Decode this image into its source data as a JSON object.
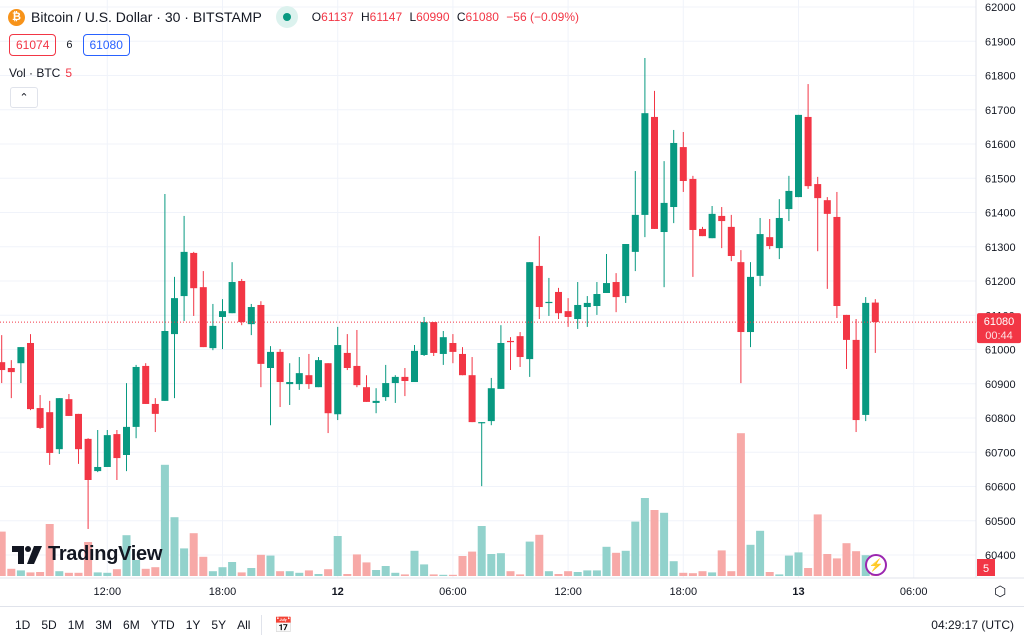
{
  "header": {
    "symbol_title": "Bitcoin / U.S. Dollar · 30 · BITSTAMP",
    "btc_icon": "₿",
    "ohlc": {
      "o_label": "O",
      "o": "61137",
      "h_label": "H",
      "h": "61147",
      "l_label": "L",
      "l": "60990",
      "c_label": "C",
      "c": "61080",
      "change": "−56 (−0.09%)"
    }
  },
  "quote": {
    "sell": "61074",
    "spread": "6",
    "buy": "61080"
  },
  "volume_legend": {
    "label": "Vol · BTC",
    "value": "5"
  },
  "collapse_icon": "⌃",
  "last_price": {
    "price": "61080",
    "countdown": "00:44"
  },
  "volume_axis_label": "5",
  "logo_text": "TradingView",
  "toolbar": {
    "ranges": [
      "1D",
      "5D",
      "1M",
      "3M",
      "6M",
      "YTD",
      "1Y",
      "5Y",
      "All"
    ],
    "clock": "04:29:17 (UTC)"
  },
  "colors": {
    "up": "#089981",
    "down": "#f23645",
    "up_vol": "#92d2cc",
    "down_vol": "#f7a9a7"
  },
  "chart_data": {
    "type": "candlestick",
    "title": "Bitcoin / U.S. Dollar · 30 · BITSTAMP",
    "interval": "30m",
    "ylim": [
      60400,
      62000
    ],
    "price_ticks": [
      62000,
      61900,
      61800,
      61700,
      61600,
      61500,
      61400,
      61300,
      61200,
      61100,
      61000,
      60900,
      60800,
      60700,
      60600,
      60500,
      60400
    ],
    "time_ticks": [
      {
        "index": 11,
        "label": "12:00",
        "bold": false
      },
      {
        "index": 23,
        "label": "18:00",
        "bold": false
      },
      {
        "index": 35,
        "label": "12",
        "bold": true
      },
      {
        "index": 47,
        "label": "06:00",
        "bold": false
      },
      {
        "index": 59,
        "label": "12:00",
        "bold": false
      },
      {
        "index": 71,
        "label": "18:00",
        "bold": false
      },
      {
        "index": 83,
        "label": "13",
        "bold": true
      },
      {
        "index": 95,
        "label": "06:00",
        "bold": false
      }
    ],
    "last_price": 61080,
    "ohlc": [
      [
        60963,
        61042,
        60902,
        60940
      ],
      [
        60946,
        60969,
        60858,
        60934
      ],
      [
        60960,
        61007,
        60902,
        61007
      ],
      [
        61019,
        61045,
        60823,
        60826
      ],
      [
        60829,
        60867,
        60768,
        60771
      ],
      [
        60817,
        60850,
        60663,
        60698
      ],
      [
        60709,
        60858,
        60695,
        60858
      ],
      [
        60855,
        60870,
        60806,
        60806
      ],
      [
        60812,
        60812,
        60666,
        60709
      ],
      [
        60739,
        60741,
        60476,
        60619
      ],
      [
        60645,
        60765,
        60642,
        60657
      ],
      [
        60657,
        60765,
        60657,
        60750
      ],
      [
        60753,
        60765,
        60619,
        60683
      ],
      [
        60692,
        60902,
        60645,
        60774
      ],
      [
        60774,
        60955,
        60741,
        60949
      ],
      [
        60952,
        60960,
        60841,
        60841
      ],
      [
        60841,
        60858,
        60759,
        60812
      ],
      [
        60850,
        61454,
        60850,
        61054
      ],
      [
        61045,
        61212,
        60858,
        61150
      ],
      [
        61156,
        61390,
        61083,
        61285
      ],
      [
        61282,
        61285,
        61098,
        61179
      ],
      [
        61182,
        61229,
        61007,
        61007
      ],
      [
        61004,
        61133,
        60998,
        61069
      ],
      [
        61095,
        61147,
        61001,
        61112
      ],
      [
        61106,
        61255,
        61106,
        61197
      ],
      [
        61200,
        61206,
        61071,
        61080
      ],
      [
        61074,
        61133,
        61042,
        61124
      ],
      [
        61130,
        61141,
        60890,
        60958
      ],
      [
        60946,
        61010,
        60779,
        60993
      ],
      [
        60993,
        61001,
        60832,
        60905
      ],
      [
        60899,
        60960,
        60838,
        60905
      ],
      [
        60899,
        60978,
        60882,
        60931
      ],
      [
        60925,
        60987,
        60885,
        60899
      ],
      [
        60890,
        60978,
        60890,
        60969
      ],
      [
        60960,
        60960,
        60756,
        60814
      ],
      [
        60811,
        61066,
        60794,
        61013
      ],
      [
        60990,
        61045,
        60940,
        60946
      ],
      [
        60952,
        61057,
        60890,
        60896
      ],
      [
        60890,
        60925,
        60847,
        60847
      ],
      [
        60844,
        60887,
        60814,
        60850
      ],
      [
        60861,
        60955,
        60850,
        60902
      ],
      [
        60902,
        60925,
        60844,
        60920
      ],
      [
        60920,
        60946,
        60864,
        60908
      ],
      [
        60905,
        61013,
        60905,
        60996
      ],
      [
        60984,
        61095,
        60981,
        61080
      ],
      [
        61080,
        61080,
        60981,
        60990
      ],
      [
        60987,
        61054,
        60955,
        61036
      ],
      [
        61019,
        61045,
        60960,
        60993
      ],
      [
        60987,
        61007,
        60925,
        60925
      ],
      [
        60925,
        60978,
        60788,
        60788
      ],
      [
        60785,
        60788,
        60601,
        60788
      ],
      [
        60791,
        60917,
        60779,
        60887
      ],
      [
        60885,
        61071,
        60885,
        61019
      ],
      [
        61025,
        61036,
        60940,
        61022
      ],
      [
        61039,
        61051,
        60949,
        60978
      ],
      [
        60972,
        61255,
        60920,
        61255
      ],
      [
        61244,
        61331,
        61089,
        61124
      ],
      [
        61136,
        61209,
        61098,
        61139
      ],
      [
        61168,
        61180,
        61089,
        61106
      ],
      [
        61112,
        61150,
        61066,
        61095
      ],
      [
        61089,
        61197,
        61060,
        61130
      ],
      [
        61124,
        61156,
        61066,
        61136
      ],
      [
        61127,
        61197,
        61101,
        61162
      ],
      [
        61165,
        61279,
        61165,
        61194
      ],
      [
        61197,
        61223,
        61109,
        61153
      ],
      [
        61156,
        61308,
        61136,
        61308
      ],
      [
        61285,
        61521,
        61229,
        61393
      ],
      [
        61393,
        61851,
        61328,
        61690
      ],
      [
        61679,
        61755,
        61352,
        61352
      ],
      [
        61343,
        61550,
        61182,
        61428
      ],
      [
        61416,
        61641,
        61369,
        61603
      ],
      [
        61591,
        61635,
        61460,
        61492
      ],
      [
        61498,
        61507,
        61212,
        61349
      ],
      [
        61352,
        61358,
        61331,
        61331
      ],
      [
        61325,
        61419,
        61325,
        61396
      ],
      [
        61390,
        61416,
        61296,
        61375
      ],
      [
        61358,
        61393,
        61258,
        61273
      ],
      [
        61255,
        61290,
        60902,
        61051
      ],
      [
        61051,
        61255,
        61007,
        61212
      ],
      [
        61215,
        61384,
        61185,
        61337
      ],
      [
        61328,
        61381,
        61293,
        61302
      ],
      [
        61296,
        61439,
        61264,
        61384
      ],
      [
        61410,
        61507,
        61375,
        61463
      ],
      [
        61445,
        61685,
        61445,
        61685
      ],
      [
        61679,
        61775,
        61469,
        61477
      ],
      [
        61483,
        61504,
        61287,
        61442
      ],
      [
        61436,
        61445,
        61177,
        61396
      ],
      [
        61387,
        61460,
        61092,
        61127
      ],
      [
        61101,
        61101,
        60943,
        61028
      ],
      [
        61028,
        61089,
        60759,
        60794
      ],
      [
        60809,
        61153,
        60791,
        61136
      ],
      [
        61137,
        61147,
        60990,
        61080
      ]
    ],
    "volume": [
      111,
      18,
      14,
      9,
      10,
      130,
      12,
      8,
      8,
      85,
      9,
      8,
      17,
      102,
      40,
      18,
      22,
      278,
      147,
      69,
      107,
      48,
      12,
      22,
      35,
      9,
      20,
      53,
      51,
      12,
      12,
      8,
      14,
      5,
      17,
      100,
      5,
      54,
      34,
      15,
      25,
      8,
      4,
      63,
      29,
      4,
      3,
      3,
      50,
      61,
      125,
      55,
      57,
      12,
      4,
      86,
      103,
      12,
      5,
      12,
      10,
      14,
      14,
      73,
      58,
      63,
      136,
      195,
      165,
      158,
      37,
      8,
      7,
      12,
      9,
      64,
      12,
      357,
      78,
      113,
      10,
      4,
      51,
      59,
      20,
      154,
      55,
      44,
      82,
      62,
      52,
      5
    ]
  }
}
